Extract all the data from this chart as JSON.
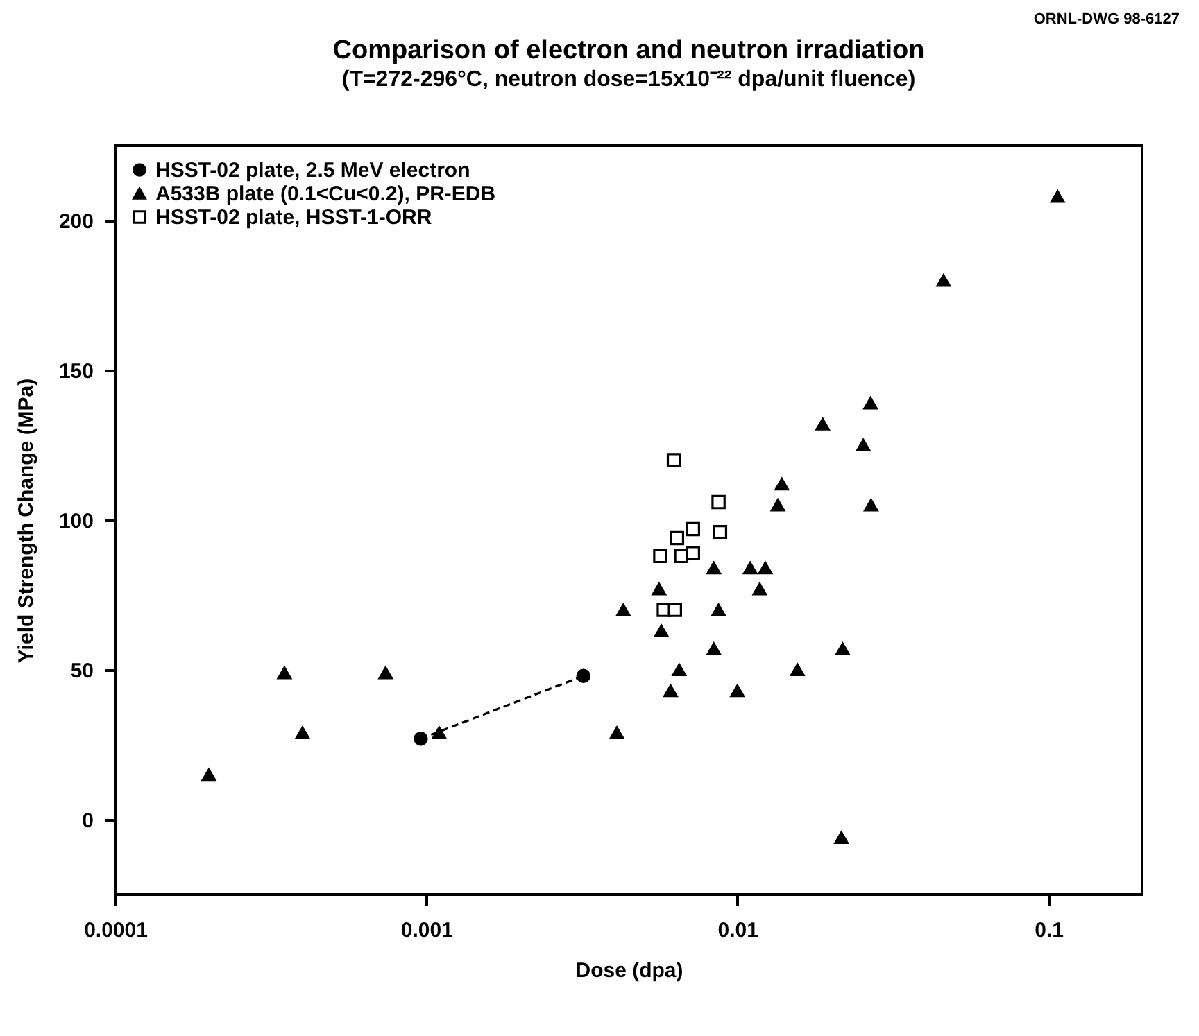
{
  "chart_data": {
    "type": "scatter",
    "title": "Comparison of electron and neutron irradiation",
    "subtitle": "(T=272-296°C, neutron dose=15x10⁻²² dpa/unit fluence)",
    "xlabel": "Dose (dpa)",
    "ylabel": "Yield Strength Change (MPa)",
    "annotations": [
      "ORNL-DWG 98-6127"
    ],
    "log": "x",
    "xlim": [
      0.0001,
      0.2
    ],
    "xticks": [
      0.0001,
      0.001,
      0.01,
      0.1
    ],
    "ylim": [
      -25,
      225
    ],
    "yticks": [
      0,
      50,
      100,
      150,
      200
    ],
    "grid": false,
    "legend": "top left",
    "series": [
      {
        "name": "HSST-02 plate, 2.5 MeV electron",
        "type": "line",
        "marker": "circle",
        "line_style": "dashed",
        "color": "#000000",
        "x": [
          0.00096,
          0.0032
        ],
        "values": [
          27,
          48
        ]
      },
      {
        "name": "A533B plate (0.1<Cu<0.2), PR-EDB",
        "type": "scatter",
        "marker": "triangle",
        "color": "#000000",
        "x": [
          0.0002,
          0.00035,
          0.0004,
          0.00074,
          0.0011,
          0.0041,
          0.0043,
          0.0056,
          0.0057,
          0.0061,
          0.0065,
          0.0084,
          0.0084,
          0.0087,
          0.01,
          0.011,
          0.0118,
          0.0123,
          0.0135,
          0.0139,
          0.0156,
          0.0188,
          0.0216,
          0.0218,
          0.0254,
          0.0268,
          0.0269,
          0.046,
          0.107
        ],
        "values": [
          15,
          49,
          29,
          49,
          29,
          29,
          70,
          77,
          63,
          43,
          50,
          84,
          57,
          70,
          43,
          84,
          77,
          84,
          105,
          112,
          50,
          132,
          -6,
          57,
          125,
          139,
          105,
          180,
          208
        ]
      },
      {
        "name": "HSST-02 plate, HSST-1-ORR",
        "type": "scatter",
        "marker": "square",
        "color": "#000000",
        "x": [
          0.00565,
          0.0058,
          0.00625,
          0.0063,
          0.0064,
          0.0066,
          0.0072,
          0.0072,
          0.0087,
          0.0088
        ],
        "values": [
          88,
          70,
          120,
          70,
          94,
          88,
          97,
          89,
          106,
          96
        ]
      }
    ]
  }
}
